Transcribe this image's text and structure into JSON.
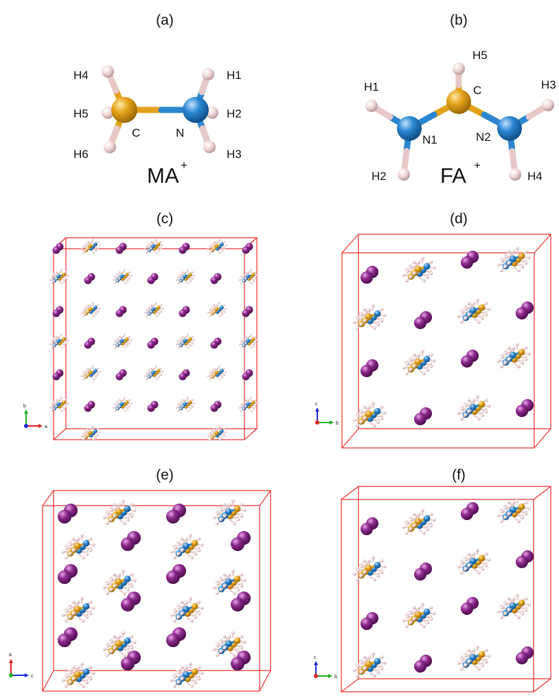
{
  "panels": [
    {
      "id": "a",
      "label": "(a)",
      "ion": "MA",
      "charge": "+",
      "atoms": [
        "H4",
        "H5",
        "H6",
        "C",
        "N",
        "H1",
        "H2",
        "H3"
      ]
    },
    {
      "id": "b",
      "label": "(b)",
      "ion": "FA",
      "charge": "+",
      "atoms": [
        "H5",
        "C",
        "H1",
        "N1",
        "N2",
        "H3",
        "H2",
        "H4"
      ]
    },
    {
      "id": "c",
      "label": "(c)",
      "axes": [
        "b",
        "a"
      ]
    },
    {
      "id": "d",
      "label": "(d)",
      "axes": [
        "c",
        "b"
      ]
    },
    {
      "id": "e",
      "label": "(e)",
      "axes": [
        "a",
        "c"
      ]
    },
    {
      "id": "f",
      "label": "(f)",
      "axes": [
        "c",
        "b"
      ]
    }
  ],
  "colors": {
    "carbon": "#e3a21a",
    "nitrogen": "#2a86d0",
    "hydrogen": "#e7c8c8",
    "iodine": "#8c2a8c",
    "cell_edge": "#ee2a2a",
    "axis_x": "#e02020",
    "axis_y": "#18b018",
    "axis_z": "#1a2ae0"
  }
}
